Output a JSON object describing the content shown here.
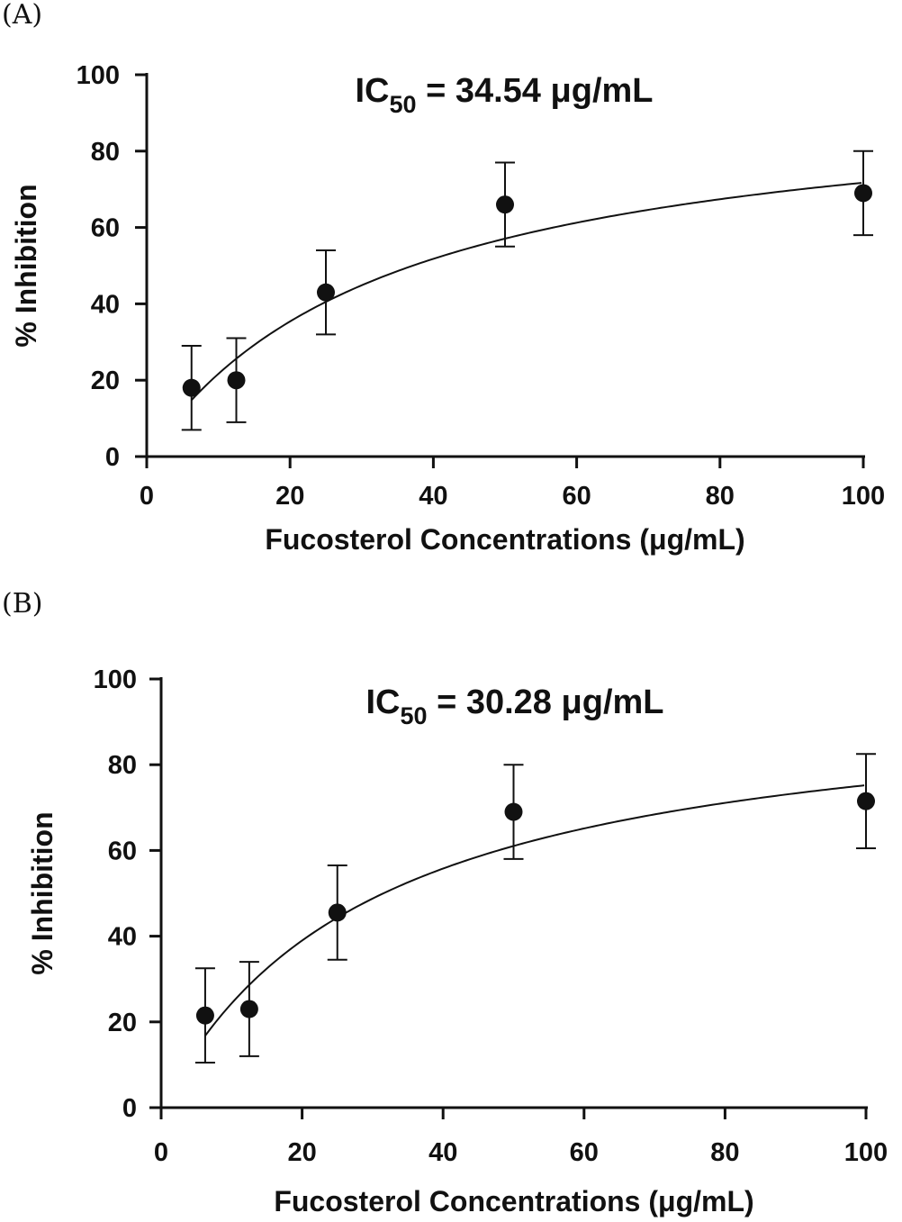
{
  "panels": [
    {
      "letter": "(A)",
      "chart_data": {
        "type": "scatter",
        "title_prefix": "IC",
        "title_subscript": "50",
        "title_suffix": " = 34.54 μg/mL",
        "xlabel": "Fucosterol Concentrations (μg/mL)",
        "ylabel": "% Inhibition",
        "xlim": [
          0,
          100
        ],
        "ylim": [
          0,
          100
        ],
        "xticks": [
          0,
          20,
          40,
          60,
          80,
          100
        ],
        "yticks": [
          0,
          20,
          40,
          60,
          80,
          100
        ],
        "x": [
          6.25,
          12.5,
          25,
          50,
          100
        ],
        "y": [
          18,
          20,
          43,
          66,
          69
        ],
        "error": [
          11,
          11,
          11,
          11,
          11
        ],
        "fit": {
          "model": "hyperbolic",
          "top": 96.5,
          "ec50": 34.54
        }
      }
    },
    {
      "letter": "(B)",
      "chart_data": {
        "type": "scatter",
        "title_prefix": "IC",
        "title_subscript": "50",
        "title_suffix": " = 30.28 μg/mL",
        "xlabel": "Fucosterol Concentrations (μg/mL)",
        "ylabel": "% Inhibition",
        "xlim": [
          0,
          100
        ],
        "ylim": [
          0,
          100
        ],
        "xticks": [
          0,
          20,
          40,
          60,
          80,
          100
        ],
        "yticks": [
          0,
          20,
          40,
          60,
          80,
          100
        ],
        "x": [
          6.25,
          12.5,
          25,
          50,
          100
        ],
        "y": [
          21.5,
          23,
          45.5,
          69,
          71.5
        ],
        "error": [
          11,
          11,
          11,
          11,
          11
        ],
        "fit": {
          "model": "hyperbolic",
          "top": 98,
          "ec50": 30.28
        }
      }
    }
  ]
}
